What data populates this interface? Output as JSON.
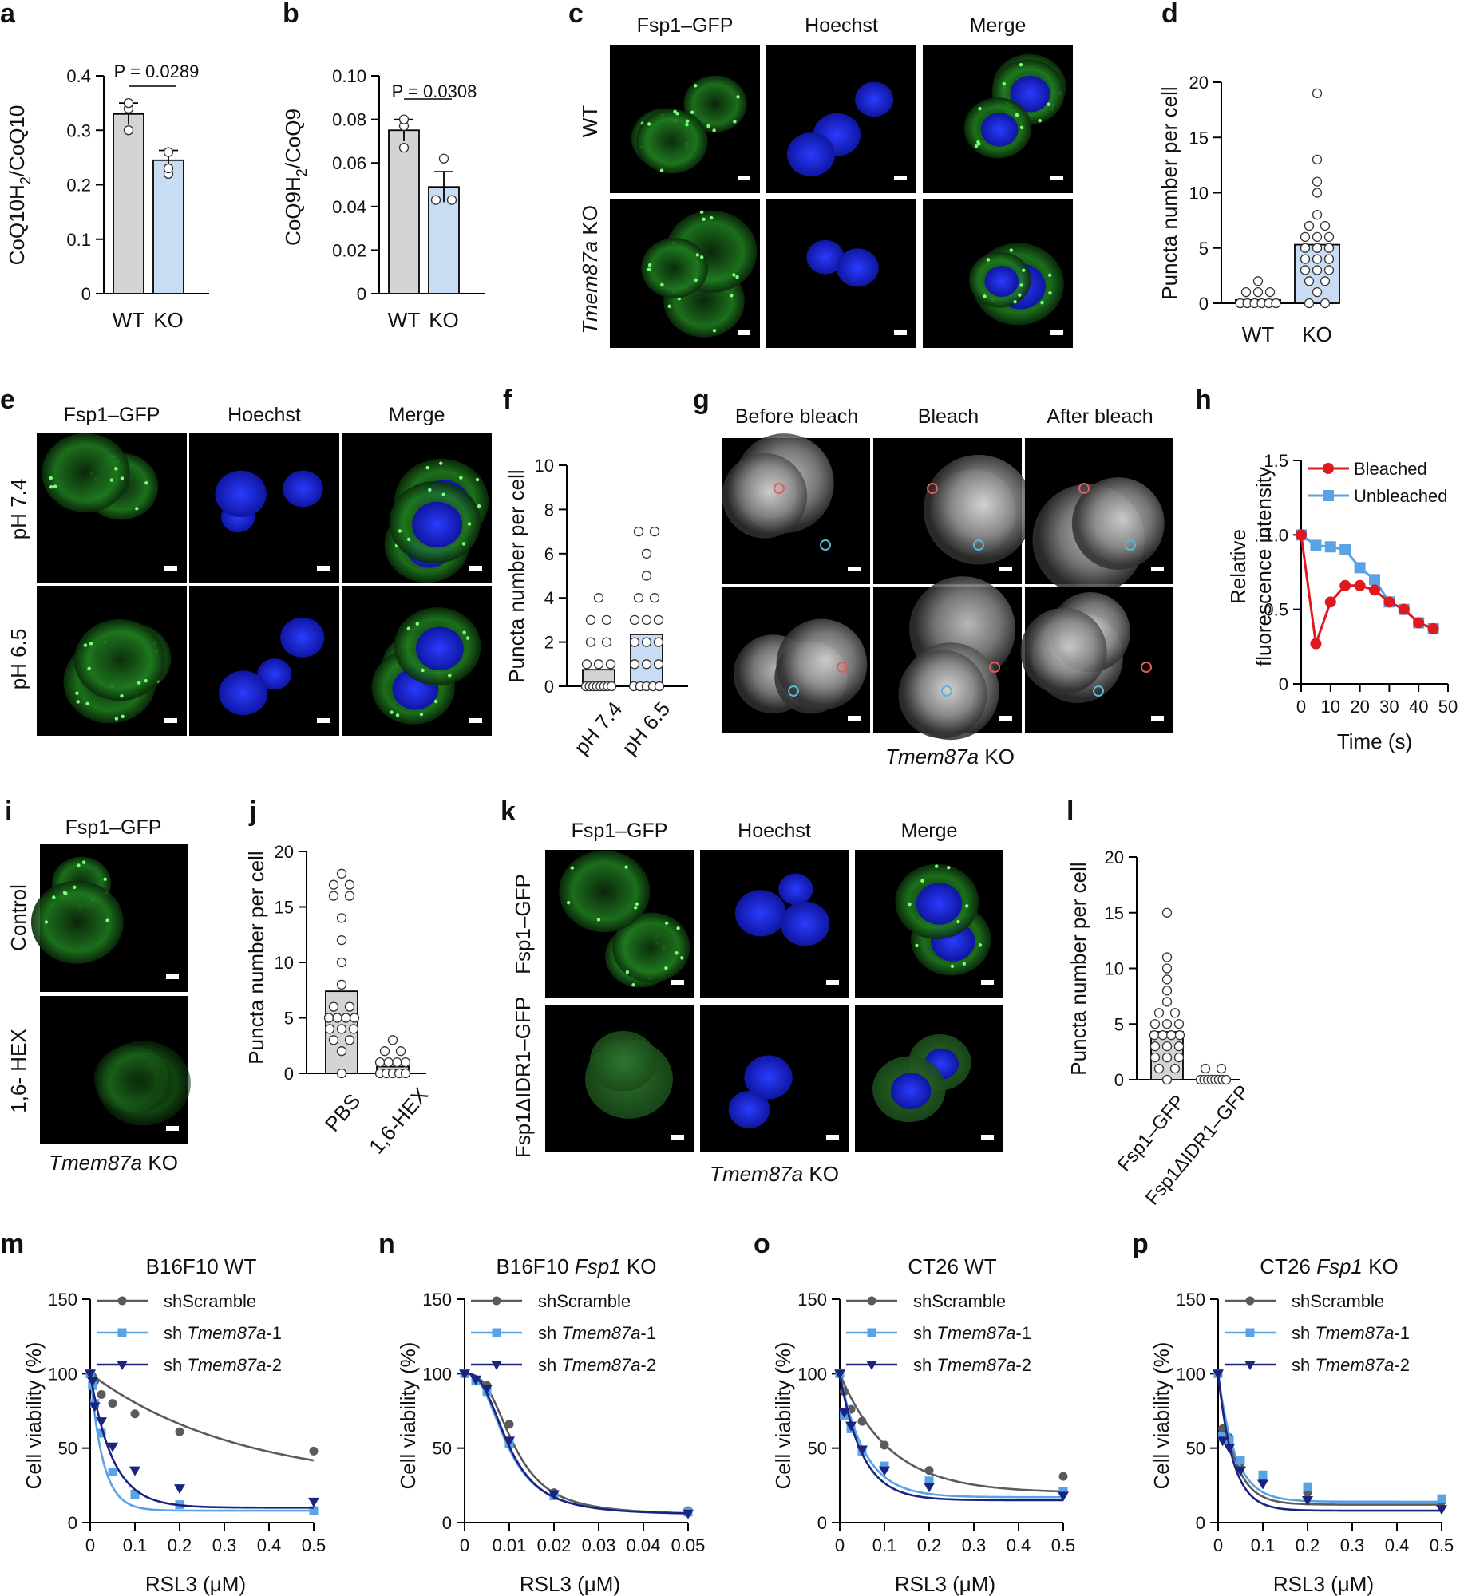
{
  "panels": {
    "a": {
      "label": "a",
      "ylabel": "CoQ10H2/CoQ10",
      "pvalue": "P = 0.0289",
      "categories": [
        "WT",
        "KO"
      ]
    },
    "b": {
      "label": "b",
      "ylabel": "CoQ9H2/CoQ9",
      "pvalue": "P = 0.0308",
      "categories": [
        "WT",
        "KO"
      ]
    },
    "c": {
      "label": "c",
      "columns": [
        "Fsp1–GFP",
        "Hoechst",
        "Merge"
      ],
      "rows": [
        "WT",
        "Tmem87a KO"
      ]
    },
    "d": {
      "label": "d",
      "ylabel": "Puncta number per cell",
      "categories": [
        "WT",
        "KO"
      ]
    },
    "e": {
      "label": "e",
      "columns": [
        "Fsp1–GFP",
        "Hoechst",
        "Merge"
      ],
      "rows": [
        "pH 7.4",
        "pH 6.5"
      ]
    },
    "f": {
      "label": "f",
      "ylabel": "Puncta number per cell",
      "categories": [
        "pH 7.4",
        "pH 6.5"
      ]
    },
    "g": {
      "label": "g",
      "columns": [
        "Before bleach",
        "Bleach",
        "After bleach"
      ],
      "caption": "Tmem87a KO"
    },
    "h": {
      "label": "h",
      "ylabel1": "Relative",
      "ylabel2": "fluorescence intensity",
      "xlabel": "Time (s)",
      "legend": [
        "Bleached",
        "Unbleached"
      ]
    },
    "i": {
      "label": "i",
      "column": "Fsp1–GFP",
      "rows": [
        "Control",
        "1,6- HEX"
      ],
      "caption": "Tmem87a KO"
    },
    "j": {
      "label": "j",
      "ylabel": "Puncta number per cell",
      "categories": [
        "PBS",
        "1,6-HEX"
      ]
    },
    "k": {
      "label": "k",
      "columns": [
        "Fsp1–GFP",
        "Hoechst",
        "Merge"
      ],
      "rows": [
        "Fsp1–GFP",
        "Fsp1ΔIDR1–GFP"
      ],
      "caption": "Tmem87a KO"
    },
    "l": {
      "label": "l",
      "ylabel": "Puncta number per cell",
      "categories": [
        "Fsp1–GFP",
        "Fsp1ΔIDR1–GFP"
      ]
    },
    "m": {
      "label": "m",
      "title": "B16F10 WT"
    },
    "n": {
      "label": "n",
      "title": "B16F10 Fsp1 KO"
    },
    "o": {
      "label": "o",
      "title": "CT26 WT"
    },
    "p": {
      "label": "p",
      "title": "CT26 Fsp1 KO"
    }
  },
  "chart_data": [
    {
      "id": "a",
      "type": "bar",
      "categories": [
        "WT",
        "KO"
      ],
      "values": [
        0.33,
        0.245
      ],
      "errors": [
        0.02,
        0.018
      ],
      "points": [
        [
          0.3,
          0.34,
          0.35
        ],
        [
          0.22,
          0.23,
          0.26
        ]
      ],
      "ylabel": "CoQ10H2/CoQ10",
      "ylim": [
        0,
        0.4
      ],
      "yticks": [
        0,
        0.1,
        0.2,
        0.3,
        0.4
      ],
      "ytick_labels": [
        "0",
        "0.1",
        "0.2",
        "0.3",
        "0.4"
      ],
      "annotation": "P = 0.0289",
      "colors": [
        "#d4d4d4",
        "#c8ddf3"
      ]
    },
    {
      "id": "b",
      "type": "bar",
      "categories": [
        "WT",
        "KO"
      ],
      "values": [
        0.075,
        0.049
      ],
      "errors": [
        0.005,
        0.007
      ],
      "points": [
        [
          0.067,
          0.077,
          0.08
        ],
        [
          0.043,
          0.043,
          0.062
        ]
      ],
      "ylabel": "CoQ9H2/CoQ9",
      "ylim": [
        0,
        0.1
      ],
      "yticks": [
        0,
        0.02,
        0.04,
        0.06,
        0.08,
        0.1
      ],
      "ytick_labels": [
        "0",
        "0.02",
        "0.04",
        "0.06",
        "0.08",
        "0.10"
      ],
      "annotation": "P = 0.0308",
      "colors": [
        "#d4d4d4",
        "#c8ddf3"
      ]
    },
    {
      "id": "d",
      "type": "bar",
      "categories": [
        "WT",
        "KO"
      ],
      "values": [
        0.3,
        5.3
      ],
      "points": [
        [
          0,
          0,
          0,
          0,
          0,
          0,
          1,
          1,
          1,
          2
        ],
        [
          0,
          0,
          1,
          2,
          2,
          3,
          3,
          3,
          4,
          4,
          4,
          5,
          5,
          5,
          6,
          6,
          6,
          7,
          7,
          8,
          10,
          11,
          13,
          19
        ]
      ],
      "ylabel": "Puncta number per cell",
      "ylim": [
        0,
        20
      ],
      "yticks": [
        0,
        5,
        10,
        15,
        20
      ],
      "colors": [
        "#d4d4d4",
        "#c8ddf3"
      ]
    },
    {
      "id": "f",
      "type": "bar",
      "categories": [
        "pH 7.4",
        "pH 6.5"
      ],
      "values": [
        0.75,
        2.35
      ],
      "points": [
        [
          0,
          0,
          0,
          0,
          0,
          0,
          0,
          0,
          1,
          1,
          1,
          2,
          2,
          3,
          3,
          4
        ],
        [
          0,
          0,
          0,
          0,
          0,
          1,
          1,
          1,
          2,
          2,
          2,
          3,
          3,
          3,
          4,
          4,
          5,
          6,
          7,
          7
        ]
      ],
      "ylabel": "Puncta number per cell",
      "ylim": [
        0,
        10
      ],
      "yticks": [
        0,
        2,
        4,
        6,
        8,
        10
      ],
      "colors": [
        "#d4d4d4",
        "#c8ddf3"
      ]
    },
    {
      "id": "h",
      "type": "line",
      "x": [
        0,
        5,
        10,
        15,
        20,
        25,
        30,
        35,
        40,
        45
      ],
      "xlabel": "Time (s)",
      "ylabel": "Relative fluorescence intensity",
      "xlim": [
        0,
        50
      ],
      "ylim": [
        0,
        1.5
      ],
      "xticks": [
        0,
        10,
        20,
        30,
        40,
        50
      ],
      "yticks": [
        0,
        0.5,
        1.0,
        1.5
      ],
      "ytick_labels": [
        "0",
        "0.5",
        "1.0",
        "1.5"
      ],
      "series": [
        {
          "name": "Bleached",
          "color": "#e0191f",
          "marker": "circle",
          "values": [
            1.0,
            0.27,
            0.55,
            0.66,
            0.66,
            0.63,
            0.55,
            0.5,
            0.41,
            0.37
          ]
        },
        {
          "name": "Unbleached",
          "color": "#5aa2e6",
          "marker": "square",
          "values": [
            1.0,
            0.93,
            0.92,
            0.9,
            0.78,
            0.7,
            0.55,
            0.5,
            0.41,
            0.37
          ]
        }
      ]
    },
    {
      "id": "j",
      "type": "bar",
      "categories": [
        "PBS",
        "1,6-HEX"
      ],
      "values": [
        7.4,
        0.6
      ],
      "points": [
        [
          0,
          2,
          3,
          3,
          4,
          4,
          4,
          5,
          5,
          5,
          5,
          6,
          6,
          8,
          10,
          12,
          14,
          16,
          16,
          17,
          17,
          18
        ],
        [
          0,
          0,
          0,
          0,
          0,
          1,
          1,
          1,
          1,
          2,
          2,
          3
        ]
      ],
      "ylabel": "Puncta number per cell",
      "ylim": [
        0,
        20
      ],
      "yticks": [
        0,
        5,
        10,
        15,
        20
      ],
      "colors": [
        "#d4d4d4",
        "#d4d4d4"
      ]
    },
    {
      "id": "l",
      "type": "bar",
      "categories": [
        "Fsp1–GFP",
        "Fsp1ΔIDR1–GFP"
      ],
      "values": [
        4.3,
        0.2
      ],
      "points": [
        [
          0,
          1,
          1,
          2,
          2,
          2,
          3,
          3,
          3,
          4,
          4,
          4,
          4,
          5,
          5,
          5,
          6,
          6,
          7,
          8,
          9,
          10,
          11,
          15
        ],
        [
          0,
          0,
          0,
          0,
          0,
          0,
          0,
          0,
          1,
          1
        ]
      ],
      "ylabel": "Puncta number per cell",
      "ylim": [
        0,
        20
      ],
      "yticks": [
        0,
        5,
        10,
        15,
        20
      ],
      "colors": [
        "#d4d4d4",
        "#d4d4d4"
      ]
    },
    {
      "id": "m",
      "type": "line",
      "title": "B16F10 WT",
      "xlabel": "RSL3 (μM)",
      "ylabel": "Cell viability (%)",
      "xlim": [
        0,
        0.5
      ],
      "ylim": [
        0,
        150
      ],
      "xticks": [
        0,
        0.1,
        0.2,
        0.3,
        0.4,
        0.5
      ],
      "yticks": [
        0,
        50,
        100,
        150
      ],
      "x": [
        0,
        0.005,
        0.01,
        0.025,
        0.05,
        0.1,
        0.2,
        0.5
      ],
      "series": [
        {
          "name": "shScramble",
          "color": "#5b5b5b",
          "marker": "circle",
          "values": [
            100,
            98,
            95,
            86,
            80,
            73,
            61,
            48
          ],
          "fit": {
            "bottom": 25,
            "top": 100,
            "k": 3
          }
        },
        {
          "name": "shTmem87a-1",
          "color": "#5aa2e6",
          "marker": "square",
          "values": [
            100,
            92,
            80,
            60,
            34,
            19,
            12,
            8
          ],
          "fit": {
            "bottom": 8,
            "top": 100,
            "k": 35
          }
        },
        {
          "name": "shTmem87a-2",
          "color": "#1a237e",
          "marker": "triangle",
          "values": [
            100,
            95,
            78,
            68,
            51,
            35,
            23,
            14
          ],
          "fit": {
            "bottom": 10,
            "top": 100,
            "k": 20
          }
        }
      ]
    },
    {
      "id": "n",
      "type": "line",
      "title": "B16F10 Fsp1 KO",
      "xlabel": "RSL3 (μM)",
      "ylabel": "Cell viability (%)",
      "xlim": [
        0,
        0.05
      ],
      "ylim": [
        0,
        150
      ],
      "xticks": [
        0,
        0.01,
        0.02,
        0.03,
        0.04,
        0.05
      ],
      "yticks": [
        0,
        50,
        100,
        150
      ],
      "x": [
        0,
        0.0025,
        0.005,
        0.01,
        0.02,
        0.05
      ],
      "series": [
        {
          "name": "shScramble",
          "color": "#5b5b5b",
          "marker": "circle",
          "values": [
            100,
            96,
            92,
            66,
            20,
            8
          ],
          "fit": {
            "bottom": 5,
            "top": 100,
            "ec50": 0.011,
            "hill": 2.8
          }
        },
        {
          "name": "shTmem87a-1",
          "color": "#5aa2e6",
          "marker": "square",
          "values": [
            100,
            95,
            88,
            53,
            18,
            7
          ],
          "fit": {
            "bottom": 5,
            "top": 100,
            "ec50": 0.0095,
            "hill": 2.6
          }
        },
        {
          "name": "shTmem87a-2",
          "color": "#1a237e",
          "marker": "triangle",
          "values": [
            100,
            96,
            90,
            55,
            19,
            6
          ],
          "fit": {
            "bottom": 5,
            "top": 100,
            "ec50": 0.0098,
            "hill": 2.7
          }
        }
      ]
    },
    {
      "id": "o",
      "type": "line",
      "title": "CT26 WT",
      "xlabel": "RSL3 (μM)",
      "ylabel": "Cell viability (%)",
      "xlim": [
        0,
        0.5
      ],
      "ylim": [
        0,
        150
      ],
      "xticks": [
        0,
        0.1,
        0.2,
        0.3,
        0.4,
        0.5
      ],
      "yticks": [
        0,
        50,
        100,
        150
      ],
      "x": [
        0,
        0.01,
        0.025,
        0.05,
        0.1,
        0.2,
        0.5
      ],
      "series": [
        {
          "name": "shScramble",
          "color": "#5b5b5b",
          "marker": "circle",
          "values": [
            100,
            88,
            76,
            68,
            52,
            35,
            31
          ],
          "fit": {
            "bottom": 20,
            "top": 100,
            "k": 9
          }
        },
        {
          "name": "shTmem87a-1",
          "color": "#5aa2e6",
          "marker": "square",
          "values": [
            100,
            72,
            63,
            48,
            38,
            28,
            21
          ],
          "fit": {
            "bottom": 17,
            "top": 100,
            "k": 18
          }
        },
        {
          "name": "shTmem87a-2",
          "color": "#1a237e",
          "marker": "triangle",
          "values": [
            100,
            74,
            65,
            49,
            35,
            24,
            18
          ],
          "fit": {
            "bottom": 15,
            "top": 100,
            "k": 20
          }
        }
      ]
    },
    {
      "id": "p",
      "type": "line",
      "title": "CT26 Fsp1 KO",
      "xlabel": "RSL3 (μM)",
      "ylabel": "Cell viability (%)",
      "xlim": [
        0,
        0.5
      ],
      "ylim": [
        0,
        150
      ],
      "xticks": [
        0,
        0.1,
        0.2,
        0.3,
        0.4,
        0.5
      ],
      "yticks": [
        0,
        50,
        100,
        150
      ],
      "x": [
        0,
        0.01,
        0.025,
        0.05,
        0.1,
        0.2,
        0.5
      ],
      "series": [
        {
          "name": "shScramble",
          "color": "#5b5b5b",
          "marker": "circle",
          "values": [
            100,
            63,
            57,
            40,
            30,
            20,
            14
          ],
          "fit": {
            "bottom": 12,
            "top": 100,
            "k": 28
          }
        },
        {
          "name": "shTmem87a-1",
          "color": "#5aa2e6",
          "marker": "square",
          "values": [
            100,
            58,
            55,
            42,
            32,
            24,
            16
          ],
          "fit": {
            "bottom": 14,
            "top": 100,
            "k": 26
          }
        },
        {
          "name": "shTmem87a-2",
          "color": "#1a237e",
          "marker": "triangle",
          "values": [
            100,
            55,
            50,
            35,
            26,
            15,
            9
          ],
          "fit": {
            "bottom": 8,
            "top": 100,
            "k": 30
          }
        }
      ]
    }
  ]
}
